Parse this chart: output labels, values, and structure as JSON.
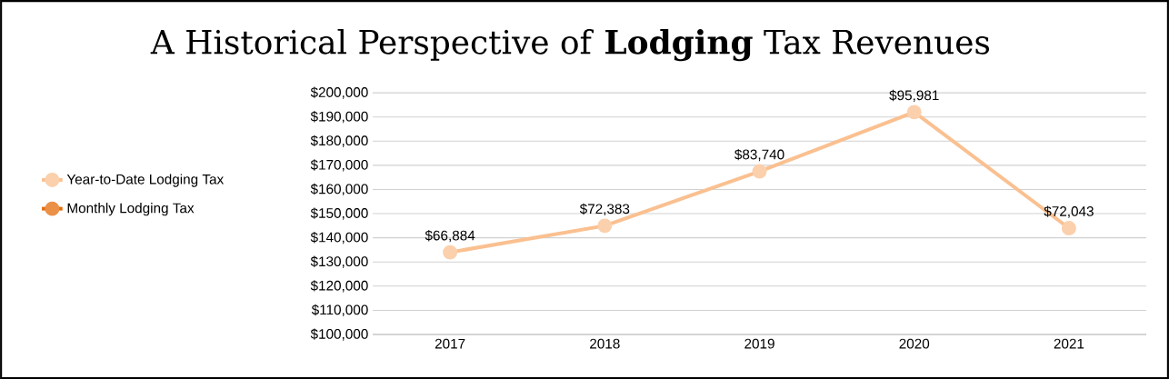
{
  "chart_data": {
    "type": "line",
    "title": "A Historical Perspective of **Lodging** Tax Revenues",
    "categories": [
      "2017",
      "2018",
      "2019",
      "2020",
      "2021"
    ],
    "series": [
      {
        "name": "Year-to-Date Lodging Tax",
        "color": "#fac090",
        "values": [
          134000,
          145000,
          167500,
          192000,
          144000
        ]
      },
      {
        "name": "Monthly Lodging Tax",
        "color": "#e46c0a",
        "values": [
          null,
          null,
          null,
          null,
          null
        ]
      }
    ],
    "ylim": [
      100000,
      200000
    ],
    "yticks": [
      {
        "value": 100000,
        "label": "$100,000"
      },
      {
        "value": 110000,
        "label": "$110,000"
      },
      {
        "value": 120000,
        "label": "$120,000"
      },
      {
        "value": 130000,
        "label": "$130,000"
      },
      {
        "value": 140000,
        "label": "$140,000"
      },
      {
        "value": 150000,
        "label": "$150,000"
      },
      {
        "value": 160000,
        "label": "$160,000"
      },
      {
        "value": 170000,
        "label": "$170,000"
      },
      {
        "value": 180000,
        "label": "$180,000"
      },
      {
        "value": 190000,
        "label": "$190,000"
      },
      {
        "value": 200000,
        "label": "$200,000"
      }
    ],
    "annotations": [
      {
        "text": "$66,884",
        "x": "2017",
        "y": 134000
      },
      {
        "text": "$72,383",
        "x": "2018",
        "y": 145000
      },
      {
        "text": "$83,740",
        "x": "2019",
        "y": 167500
      },
      {
        "text": "$95,981",
        "x": "2020",
        "y": 192000
      },
      {
        "text": "$72,043",
        "x": "2021",
        "y": 144000
      }
    ],
    "grid": "y",
    "legend": "left",
    "marker": "circle",
    "line_style": "solid"
  }
}
